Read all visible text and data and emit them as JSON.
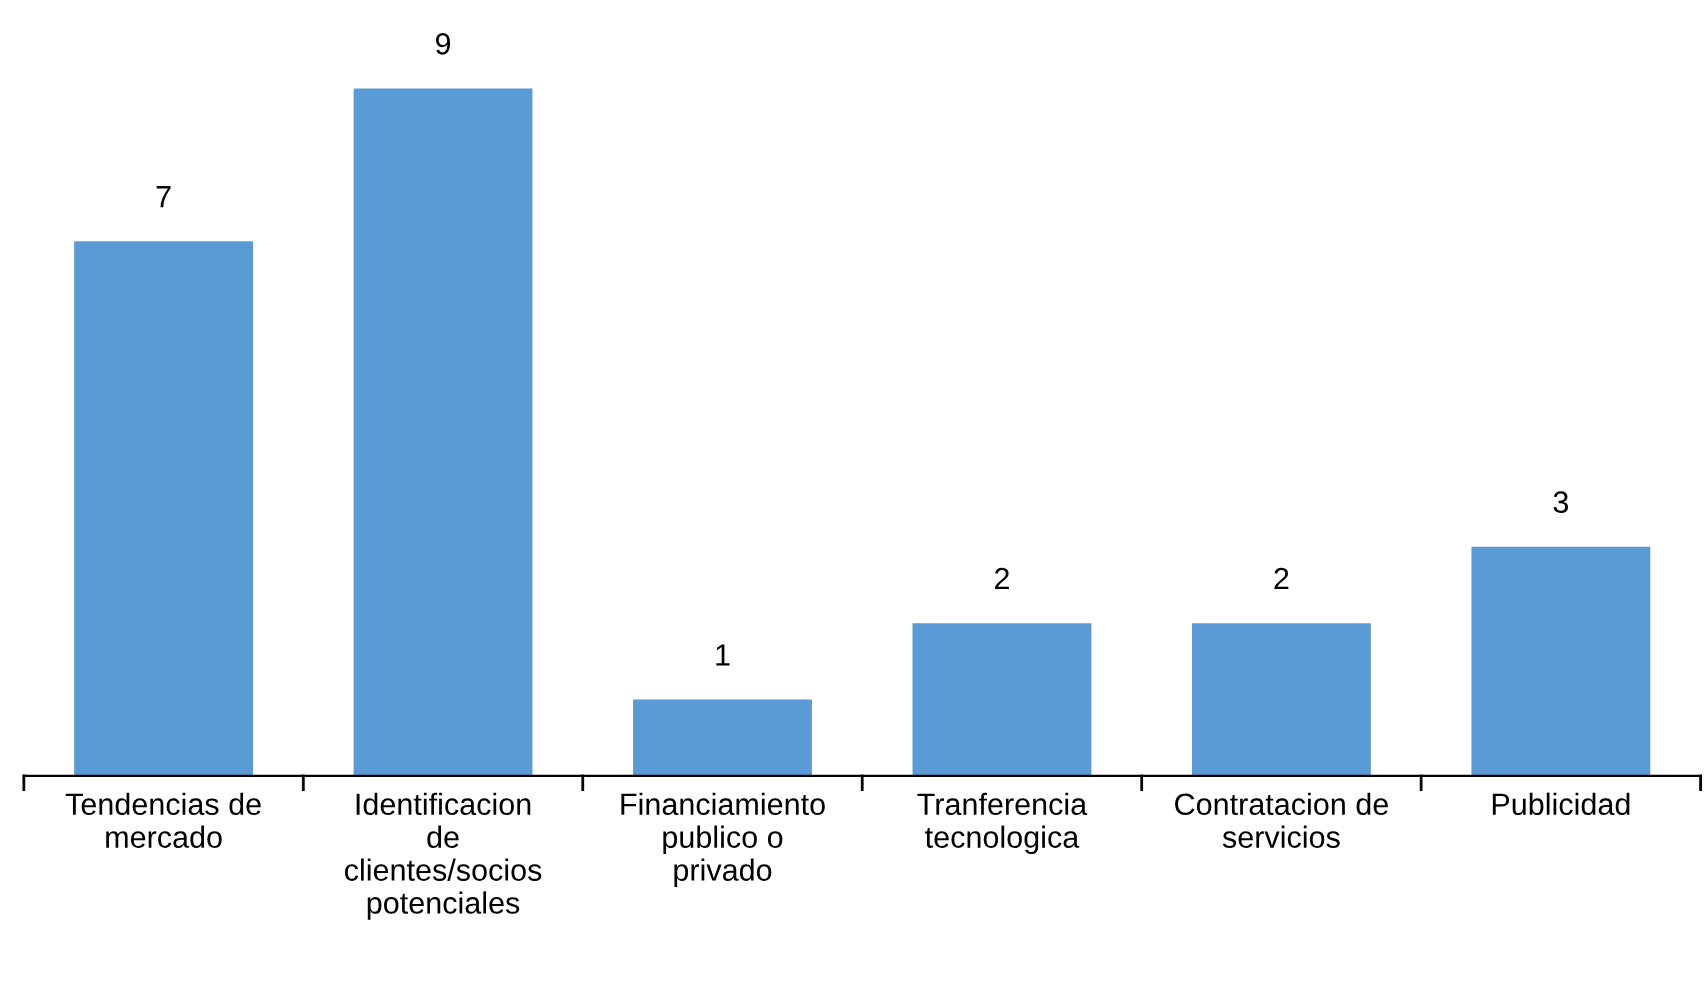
{
  "chart_data": {
    "type": "bar",
    "categories": [
      "Tendencias de\nmercado",
      "Identificacion\nde\nclientes/socios\npotenciales",
      "Financiamiento\npublico o\nprivado",
      "Tranferencia\ntecnologica",
      "Contratacion de\nservicios",
      "Publicidad"
    ],
    "values": [
      7,
      9,
      1,
      2,
      2,
      3
    ],
    "color": "#5b9bd5",
    "data_labels": true,
    "grid": false,
    "legend": false
  }
}
